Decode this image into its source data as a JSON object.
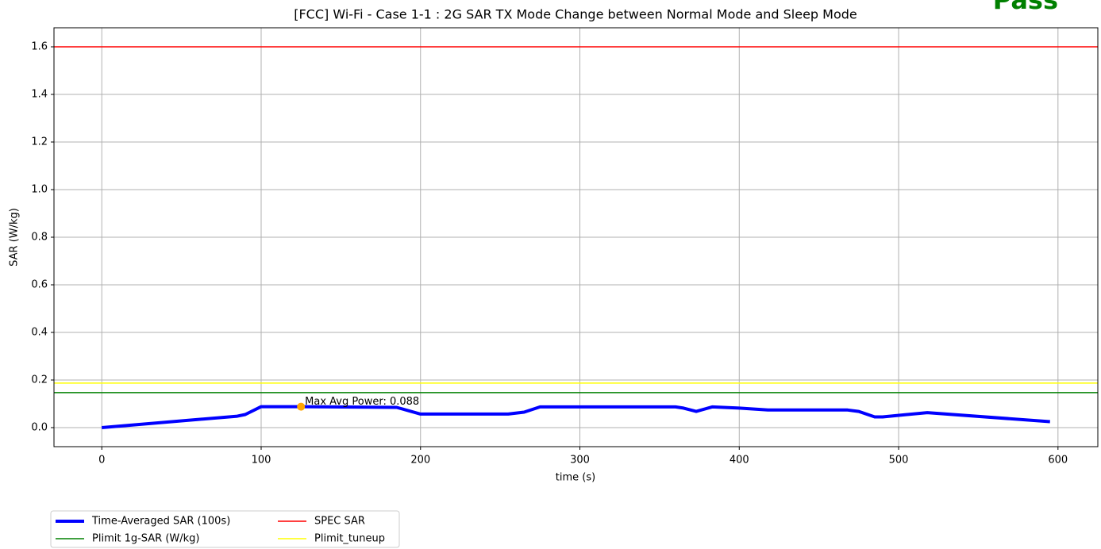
{
  "chart_data": {
    "type": "line",
    "title": "[FCC] Wi-Fi - Case 1-1 : 2G SAR TX Mode Change between Normal Mode and Sleep Mode",
    "status": "Pass",
    "status_color": "green",
    "xlabel": "time (s)",
    "ylabel": "SAR (W/kg)",
    "xlim": [
      -30,
      625
    ],
    "ylim": [
      -0.08,
      1.68
    ],
    "xticks": [
      0,
      100,
      200,
      300,
      400,
      500,
      600
    ],
    "yticks": [
      {
        "value": 0,
        "label": "0.0"
      },
      0.2,
      0.4,
      0.6,
      0.8,
      {
        "value": 1,
        "label": "1.0"
      },
      1.2,
      1.4,
      1.6
    ],
    "grid": true,
    "series": [
      {
        "name": "Time-Averaged SAR (100s)",
        "color": "blue",
        "x": [
          0,
          85,
          90,
          100,
          125,
          185,
          200,
          255,
          265,
          275,
          360,
          365,
          373,
          383,
          400,
          418,
          468,
          475,
          485,
          490,
          518,
          595
        ],
        "values": [
          0.0,
          0.048,
          0.055,
          0.088,
          0.088,
          0.085,
          0.057,
          0.057,
          0.065,
          0.087,
          0.087,
          0.082,
          0.068,
          0.087,
          0.082,
          0.074,
          0.074,
          0.068,
          0.045,
          0.045,
          0.063,
          0.025
        ]
      }
    ],
    "hlines": [
      {
        "name": "Plimit 1g-SAR (W/kg)",
        "color": "green",
        "value": 0.147
      },
      {
        "name": "SPEC SAR",
        "color": "red",
        "value": 1.6
      },
      {
        "name": "Plimit_tuneup",
        "color": "yellow",
        "value": 0.187
      }
    ],
    "max_point": {
      "x": 125,
      "y": 0.088,
      "color": "orange",
      "label": "Max Avg Power: 0.088"
    }
  }
}
